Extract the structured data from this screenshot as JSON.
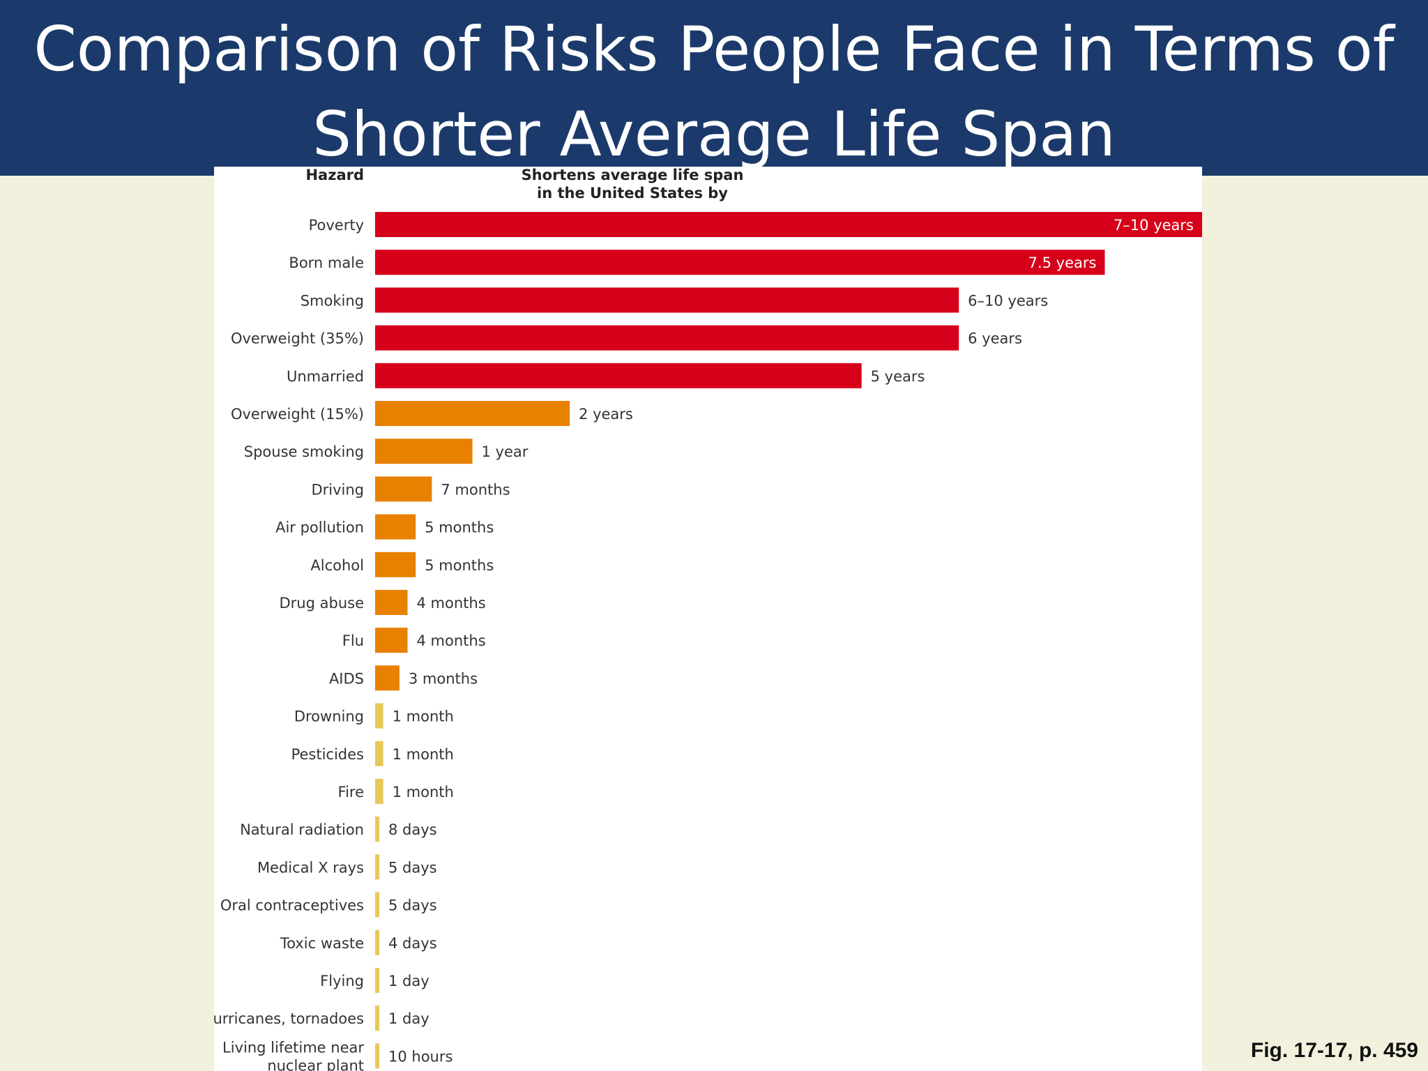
{
  "slide": {
    "title": "Comparison of Risks People Face in Terms of\nShorter Average Life Span",
    "caption": "Fig. 17-17, p. 459"
  },
  "colors": {
    "title_band": "#1b3a6b",
    "background": "#f2f1dd",
    "red": "#d7001a",
    "orange": "#e88000",
    "yellow": "#e8c85a"
  },
  "chart_data": {
    "type": "bar",
    "orientation": "horizontal",
    "category_header": "Hazard",
    "value_header": "Shortens average life span\nin the United States by",
    "unit": "months",
    "categories": [
      "Poverty",
      "Born male",
      "Smoking",
      "Overweight (35%)",
      "Unmarried",
      "Overweight (15%)",
      "Spouse smoking",
      "Driving",
      "Air pollution",
      "Alcohol",
      "Drug abuse",
      "Flu",
      "AIDS",
      "Drowning",
      "Pesticides",
      "Fire",
      "Natural radiation",
      "Medical X rays",
      "Oral contraceptives",
      "Toxic waste",
      "Flying",
      "Hurricanes, tornadoes",
      "Living lifetime near\nnuclear plant"
    ],
    "value_labels": [
      "7–10 years",
      "7.5 years",
      "6–10 years",
      "6 years",
      "5 years",
      "2 years",
      "1 year",
      "7 months",
      "5 months",
      "5 months",
      "4 months",
      "4 months",
      "3 months",
      "1 month",
      "1 month",
      "1 month",
      "8 days",
      "5 days",
      "5 days",
      "4 days",
      "1 day",
      "1 day",
      "10 hours"
    ],
    "values": [
      102,
      90,
      72,
      72,
      60,
      24,
      12,
      7,
      5,
      5,
      4,
      4,
      3,
      1,
      1,
      1,
      0.26,
      0.16,
      0.16,
      0.13,
      0.03,
      0.03,
      0.014
    ],
    "colors": [
      "red",
      "red",
      "red",
      "red",
      "red",
      "orange",
      "orange",
      "orange",
      "orange",
      "orange",
      "orange",
      "orange",
      "orange",
      "yellow",
      "yellow",
      "yellow",
      "yellow",
      "yellow",
      "yellow",
      "yellow",
      "yellow",
      "yellow",
      "yellow"
    ]
  }
}
